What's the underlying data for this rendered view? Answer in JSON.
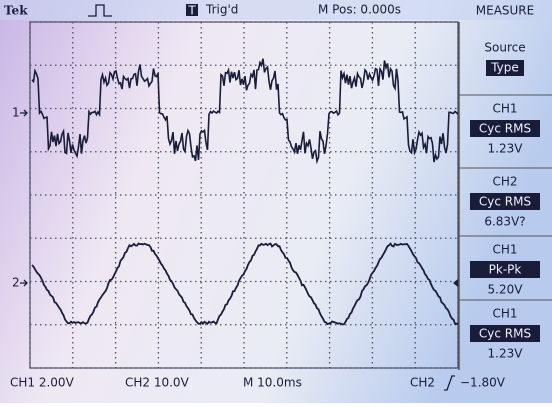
{
  "header": {
    "brand": "Tek",
    "trigger_icon": "T",
    "trigger": "Trig'd",
    "position": "M Pos: 0.000s",
    "menu": "MEASURE"
  },
  "menu": {
    "source": "Source",
    "type": "Type",
    "measurements": [
      {
        "channel": "CH1",
        "type": "Cyc RMS",
        "value": "1.23V"
      },
      {
        "channel": "CH2",
        "type": "Cyc RMS",
        "value": "6.83V?"
      },
      {
        "channel": "CH1",
        "type": "Pk-Pk",
        "value": "5.20V"
      },
      {
        "channel": "CH1",
        "type": "Cyc RMS",
        "value": "1.23V"
      }
    ]
  },
  "markers": {
    "ch1": "1",
    "ch2": "2"
  },
  "footer": {
    "ch1": "CH1 2.00V",
    "ch2": "CH2 10.0V",
    "time": "M 10.0ms",
    "trigger_source": "CH2",
    "trigger_level": "−1.80V"
  }
}
